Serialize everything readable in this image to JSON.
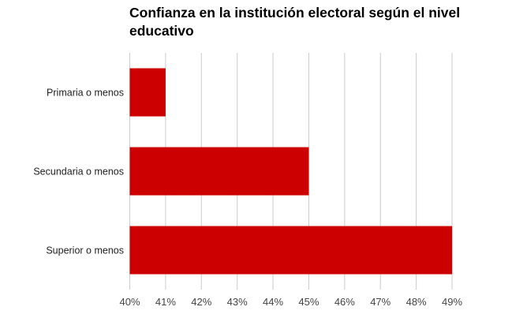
{
  "chart_data": {
    "type": "bar",
    "orientation": "horizontal",
    "title": "Confianza en la institución electoral según el nivel educativo",
    "categories": [
      "Primaria o menos",
      "Secundaria o menos",
      "Superior o menos"
    ],
    "values": [
      41,
      45,
      49
    ],
    "xlabel": "",
    "ylabel": "",
    "xlim": [
      40,
      49
    ],
    "ticks": [
      "40%",
      "41%",
      "42%",
      "43%",
      "44%",
      "45%",
      "46%",
      "47%",
      "48%",
      "49%"
    ],
    "grid": true,
    "legend": "none",
    "bar_color": "#cc0000"
  }
}
